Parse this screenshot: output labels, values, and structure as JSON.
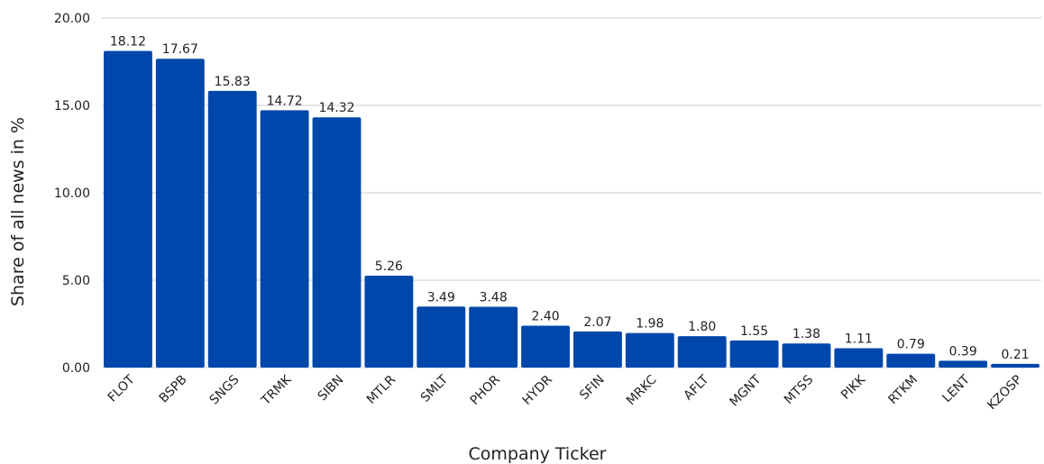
{
  "chart_data": {
    "type": "bar",
    "categories": [
      "FLOT",
      "BSPB",
      "SNGS",
      "TRMK",
      "SIBN",
      "MTLR",
      "SMLT",
      "PHOR",
      "HYDR",
      "SFIN",
      "MRKC",
      "AFLT",
      "MGNT",
      "MTSS",
      "PIKK",
      "RTKM",
      "LENT",
      "KZOSP"
    ],
    "values": [
      18.12,
      17.67,
      15.83,
      14.72,
      14.32,
      5.26,
      3.49,
      3.48,
      2.4,
      2.07,
      1.98,
      1.8,
      1.55,
      1.38,
      1.11,
      0.79,
      0.39,
      0.21
    ],
    "value_labels": [
      "18.12",
      "17.67",
      "15.83",
      "14.72",
      "14.32",
      "5.26",
      "3.49",
      "3.48",
      "2.40",
      "2.07",
      "1.98",
      "1.80",
      "1.55",
      "1.38",
      "1.11",
      "0.79",
      "0.39",
      "0.21"
    ],
    "xlabel": "Company Ticker",
    "ylabel": "Share of all news in %",
    "ylim": [
      0,
      20
    ],
    "yticks": [
      "0.00",
      "5.00",
      "10.00",
      "15.00",
      "20.00"
    ],
    "grid": true,
    "bar_color": "#0047ab",
    "grid_color": "#cccccc"
  }
}
